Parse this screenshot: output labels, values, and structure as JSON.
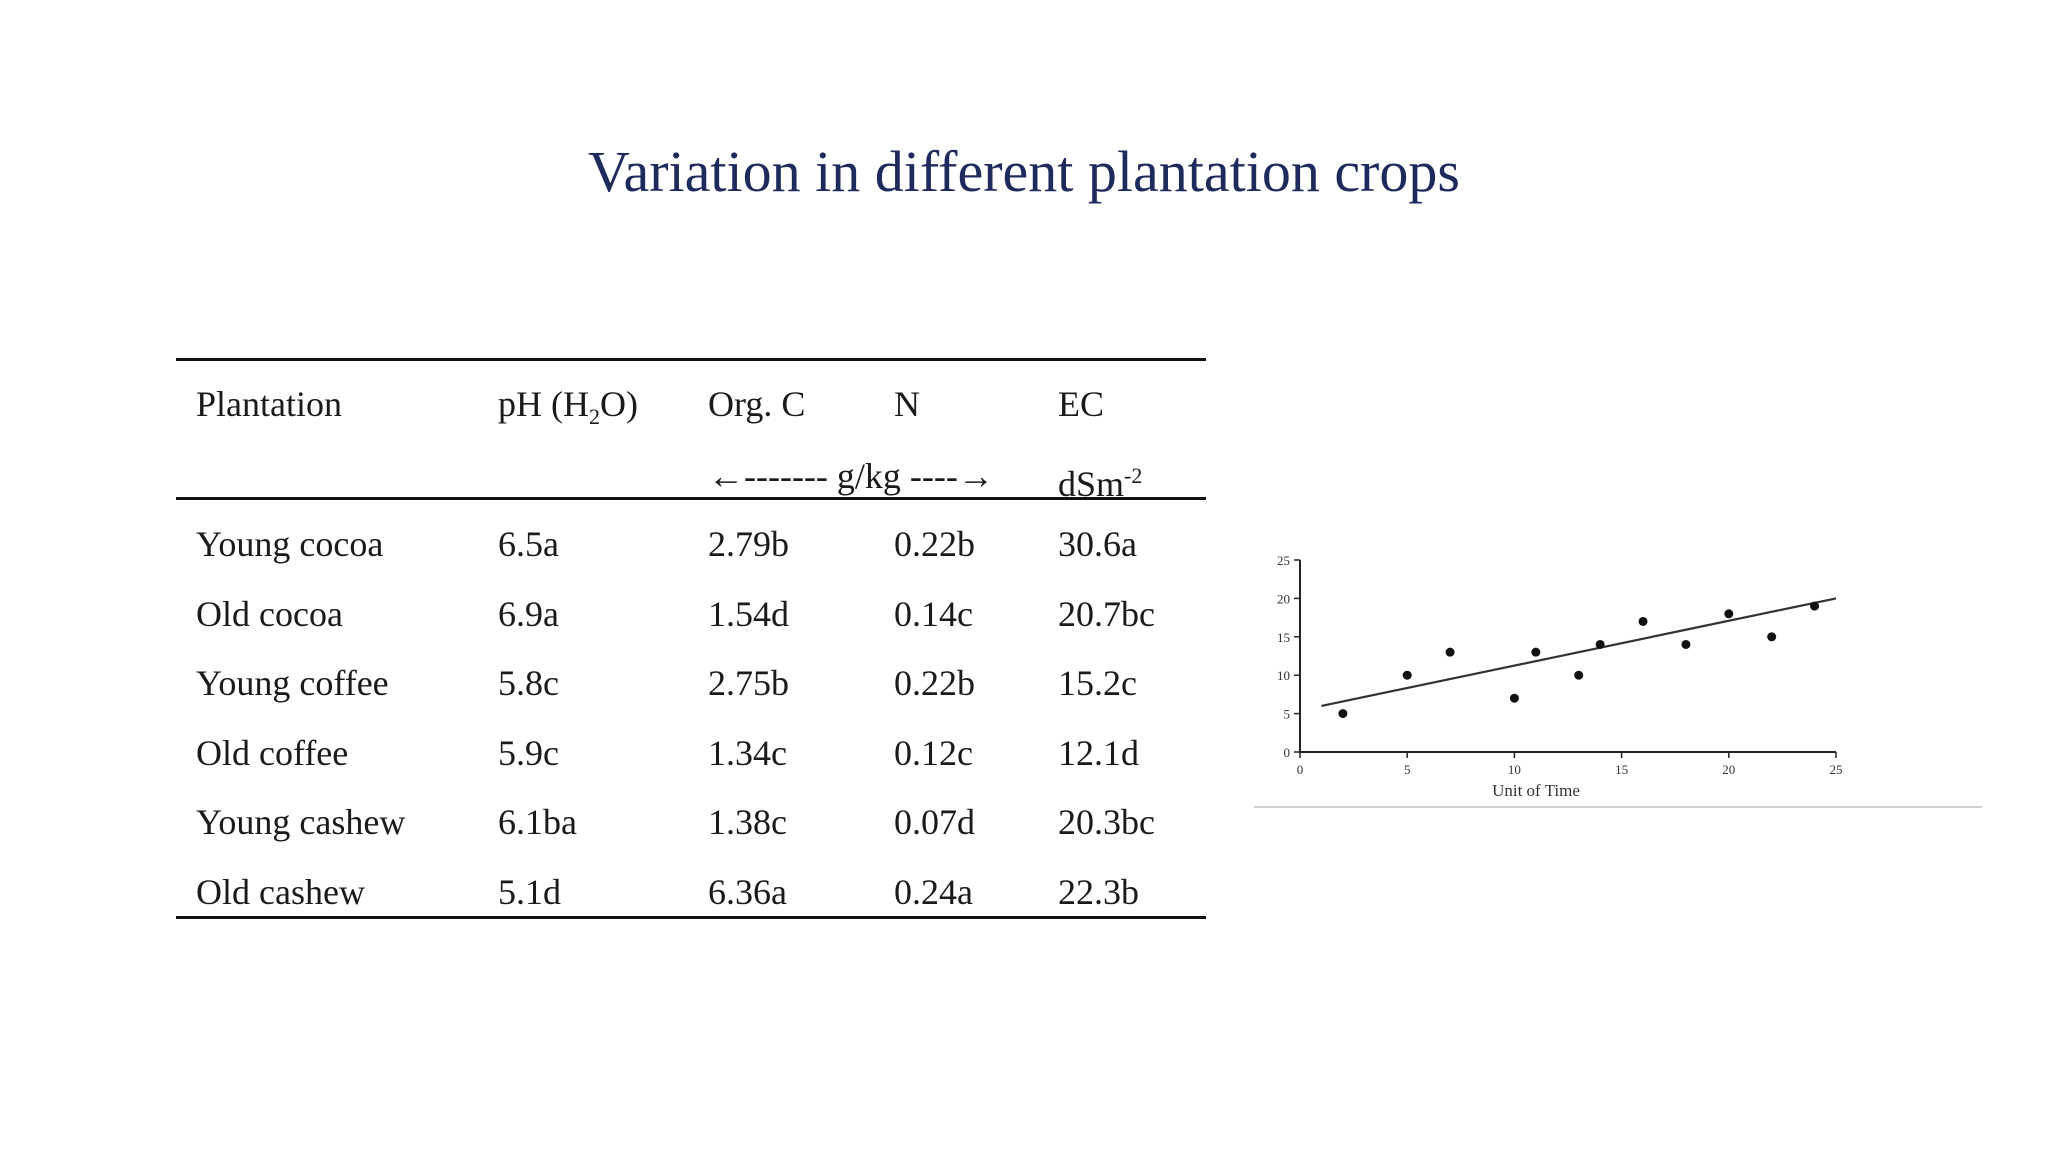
{
  "slide": {
    "title": "Variation in different plantation crops"
  },
  "table": {
    "headers": {
      "plantation": "Plantation",
      "ph": "pH (H",
      "ph_sub": "2",
      "ph_end": "O)",
      "orgc": "Org. C",
      "n": "N",
      "ec": "EC"
    },
    "units": {
      "gkg": "←------- g/kg ----→",
      "ec": "dSm",
      "ec_sup": "-2"
    },
    "rows": [
      {
        "plantation": "Young cocoa",
        "ph": "6.5a",
        "orgc": "2.79b",
        "n": "0.22b",
        "ec": "30.6a"
      },
      {
        "plantation": "Old cocoa",
        "ph": "6.9a",
        "orgc": "1.54d",
        "n": "0.14c",
        "ec": "20.7bc"
      },
      {
        "plantation": "Young coffee",
        "ph": "5.8c",
        "orgc": "2.75b",
        "n": "0.22b",
        "ec": "15.2c"
      },
      {
        "plantation": "Old coffee",
        "ph": "5.9c",
        "orgc": "1.34c",
        "n": "0.12c",
        "ec": "12.1d"
      },
      {
        "plantation": "Young cashew",
        "ph": "6.1ba",
        "orgc": "1.38c",
        "n": "0.07d",
        "ec": "20.3bc"
      },
      {
        "plantation": "Old cashew",
        "ph": "5.1d",
        "orgc": "6.36a",
        "n": "0.24a",
        "ec": "22.3b"
      }
    ]
  },
  "chart_data": {
    "type": "scatter",
    "title": "",
    "xlabel": "Unit of Time",
    "ylabel": "",
    "xlim": [
      0,
      25
    ],
    "ylim": [
      0,
      25
    ],
    "xticks": [
      "0",
      "5",
      "10",
      "15",
      "20",
      "25"
    ],
    "yticks": [
      "0",
      "5",
      "10",
      "15",
      "20",
      "25"
    ],
    "points": [
      {
        "x": 2,
        "y": 5
      },
      {
        "x": 5,
        "y": 10
      },
      {
        "x": 7,
        "y": 13
      },
      {
        "x": 10,
        "y": 7
      },
      {
        "x": 11,
        "y": 13
      },
      {
        "x": 13,
        "y": 10
      },
      {
        "x": 14,
        "y": 14
      },
      {
        "x": 16,
        "y": 17
      },
      {
        "x": 18,
        "y": 14
      },
      {
        "x": 20,
        "y": 18
      },
      {
        "x": 22,
        "y": 15
      },
      {
        "x": 24,
        "y": 19
      }
    ],
    "trendline": {
      "x1": 1,
      "y1": 6,
      "x2": 25,
      "y2": 20
    },
    "grid": false,
    "colors": {
      "points": "#111111",
      "trendline": "#333333",
      "axes": "#222222"
    }
  }
}
